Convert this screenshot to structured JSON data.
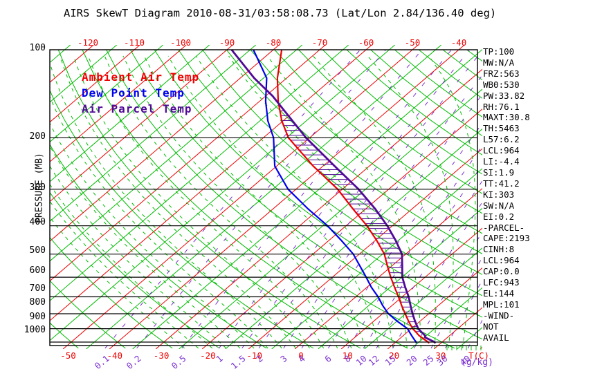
{
  "title": "AIRS SkewT Diagram 2010-08-31/03:58:08.73 (Lat/Lon 2.84/136.40 deg)",
  "colors": {
    "isotherm_red": "#ee0000",
    "grid_green": "#00bb00",
    "mixing_purple": "#7b2fd0",
    "isobar_black": "#000000",
    "ambient": "#ee0000",
    "dew_point": "#0000ee",
    "parcel": "#500a96"
  },
  "stats": [
    "TP:100",
    "MW:N/A",
    "FRZ:563",
    "WB0:530",
    "PW:33.82",
    "RH:76.1",
    "MAXT:30.8",
    "TH:5463",
    "L57:6.2",
    "LCL:964",
    "LI:-4.4",
    "SI:1.9",
    "TT:41.2",
    "KI:303",
    "SW:N/A",
    "EI:0.2",
    "-PARCEL-",
    "CAPE:2193",
    "CINH:8",
    "LCL:964",
    "CAP:0.0",
    "LFC:943",
    "EL:144",
    "MPL:101",
    "-WIND-",
    "NOT",
    "AVAIL"
  ],
  "chart_data": {
    "type": "line",
    "title": "AIRS SkewT Diagram 2010-08-31/03:58:08.73 (Lat/Lon 2.84/136.40 deg)",
    "x_axis": {
      "label": "T(C)",
      "top_ticks_c": [
        -120,
        -110,
        -100,
        -90,
        -80,
        -70,
        -60,
        -50,
        -40
      ],
      "bottom_ticks_c": [
        -50,
        -40,
        -30,
        -20,
        -10,
        0,
        10,
        20,
        30
      ]
    },
    "y_axis": {
      "label": "PRESSURE (MB)",
      "scale": "log",
      "ticks_mb": [
        100,
        200,
        300,
        400,
        500,
        600,
        700,
        800,
        900,
        1000
      ],
      "range_mb": [
        100,
        1050
      ]
    },
    "mixing_ratio_unit": "(g/kg)",
    "mixing_ratio_ticks_g_kg": [
      0.1,
      0.2,
      0.5,
      1,
      1.5,
      2,
      3,
      4,
      6,
      8,
      10,
      12,
      15,
      20,
      25,
      30,
      40
    ],
    "grid": {
      "isotherm_step_c": 10,
      "intermediate_isotherm_step_c": 10,
      "dry_adiabat_step_c": 10,
      "moist_adiabat_theta_w_c": [
        -24,
        -21,
        -18,
        -15,
        -12,
        -9,
        -6,
        -3,
        0,
        3,
        6,
        9,
        12,
        15,
        18,
        21,
        24,
        27,
        30,
        33,
        36
      ]
    },
    "cape_hatch": {
      "top_mb": 144,
      "bottom_mb": 943
    },
    "series": [
      {
        "name": "Ambient Air Temp",
        "color": "#ee0000",
        "points_p_t": [
          [
            1010,
            27.5
          ],
          [
            1000,
            27.0
          ],
          [
            975,
            25.2
          ],
          [
            950,
            23.4
          ],
          [
            925,
            21.9
          ],
          [
            900,
            20.3
          ],
          [
            850,
            17.6
          ],
          [
            800,
            14.9
          ],
          [
            750,
            12.1
          ],
          [
            700,
            9.2
          ],
          [
            650,
            6.0
          ],
          [
            600,
            2.6
          ],
          [
            550,
            -0.9
          ],
          [
            500,
            -4.6
          ],
          [
            450,
            -9.6
          ],
          [
            400,
            -15.5
          ],
          [
            350,
            -22.8
          ],
          [
            300,
            -31.0
          ],
          [
            250,
            -42.1
          ],
          [
            200,
            -54.6
          ],
          [
            175,
            -60.3
          ],
          [
            150,
            -66.0
          ],
          [
            125,
            -72.0
          ],
          [
            100,
            -78.2
          ]
        ]
      },
      {
        "name": "Dew Point Temp",
        "color": "#0000ee",
        "points_p_t": [
          [
            1010,
            24.8
          ],
          [
            1000,
            24.4
          ],
          [
            975,
            23.1
          ],
          [
            950,
            21.8
          ],
          [
            925,
            20.5
          ],
          [
            900,
            19.2
          ],
          [
            850,
            15.2
          ],
          [
            800,
            11.3
          ],
          [
            750,
            8.0
          ],
          [
            700,
            4.8
          ],
          [
            650,
            1.0
          ],
          [
            600,
            -2.7
          ],
          [
            550,
            -6.8
          ],
          [
            500,
            -11.3
          ],
          [
            450,
            -17.2
          ],
          [
            400,
            -24.0
          ],
          [
            350,
            -32.5
          ],
          [
            300,
            -41.7
          ],
          [
            250,
            -50.4
          ],
          [
            200,
            -57.8
          ],
          [
            175,
            -63.3
          ],
          [
            150,
            -68.7
          ],
          [
            125,
            -74.3
          ],
          [
            100,
            -84.3
          ]
        ]
      },
      {
        "name": "Air Parcel Temp",
        "color": "#500a96",
        "points_p_t": [
          [
            1010,
            28.8
          ],
          [
            1000,
            28.4
          ],
          [
            964,
            25.2
          ],
          [
            950,
            24.7
          ],
          [
            925,
            23.1
          ],
          [
            900,
            21.5
          ],
          [
            850,
            19.0
          ],
          [
            800,
            16.5
          ],
          [
            750,
            14.0
          ],
          [
            700,
            11.4
          ],
          [
            650,
            8.3
          ],
          [
            600,
            5.1
          ],
          [
            550,
            2.3
          ],
          [
            500,
            -0.8
          ],
          [
            450,
            -5.5
          ],
          [
            400,
            -11.1
          ],
          [
            350,
            -18.0
          ],
          [
            300,
            -26.5
          ],
          [
            250,
            -37.5
          ],
          [
            200,
            -50.8
          ],
          [
            175,
            -58.0
          ],
          [
            150,
            -66.3
          ],
          [
            144,
            -68.5
          ],
          [
            125,
            -77.0
          ],
          [
            100,
            -89.0
          ]
        ]
      }
    ]
  }
}
